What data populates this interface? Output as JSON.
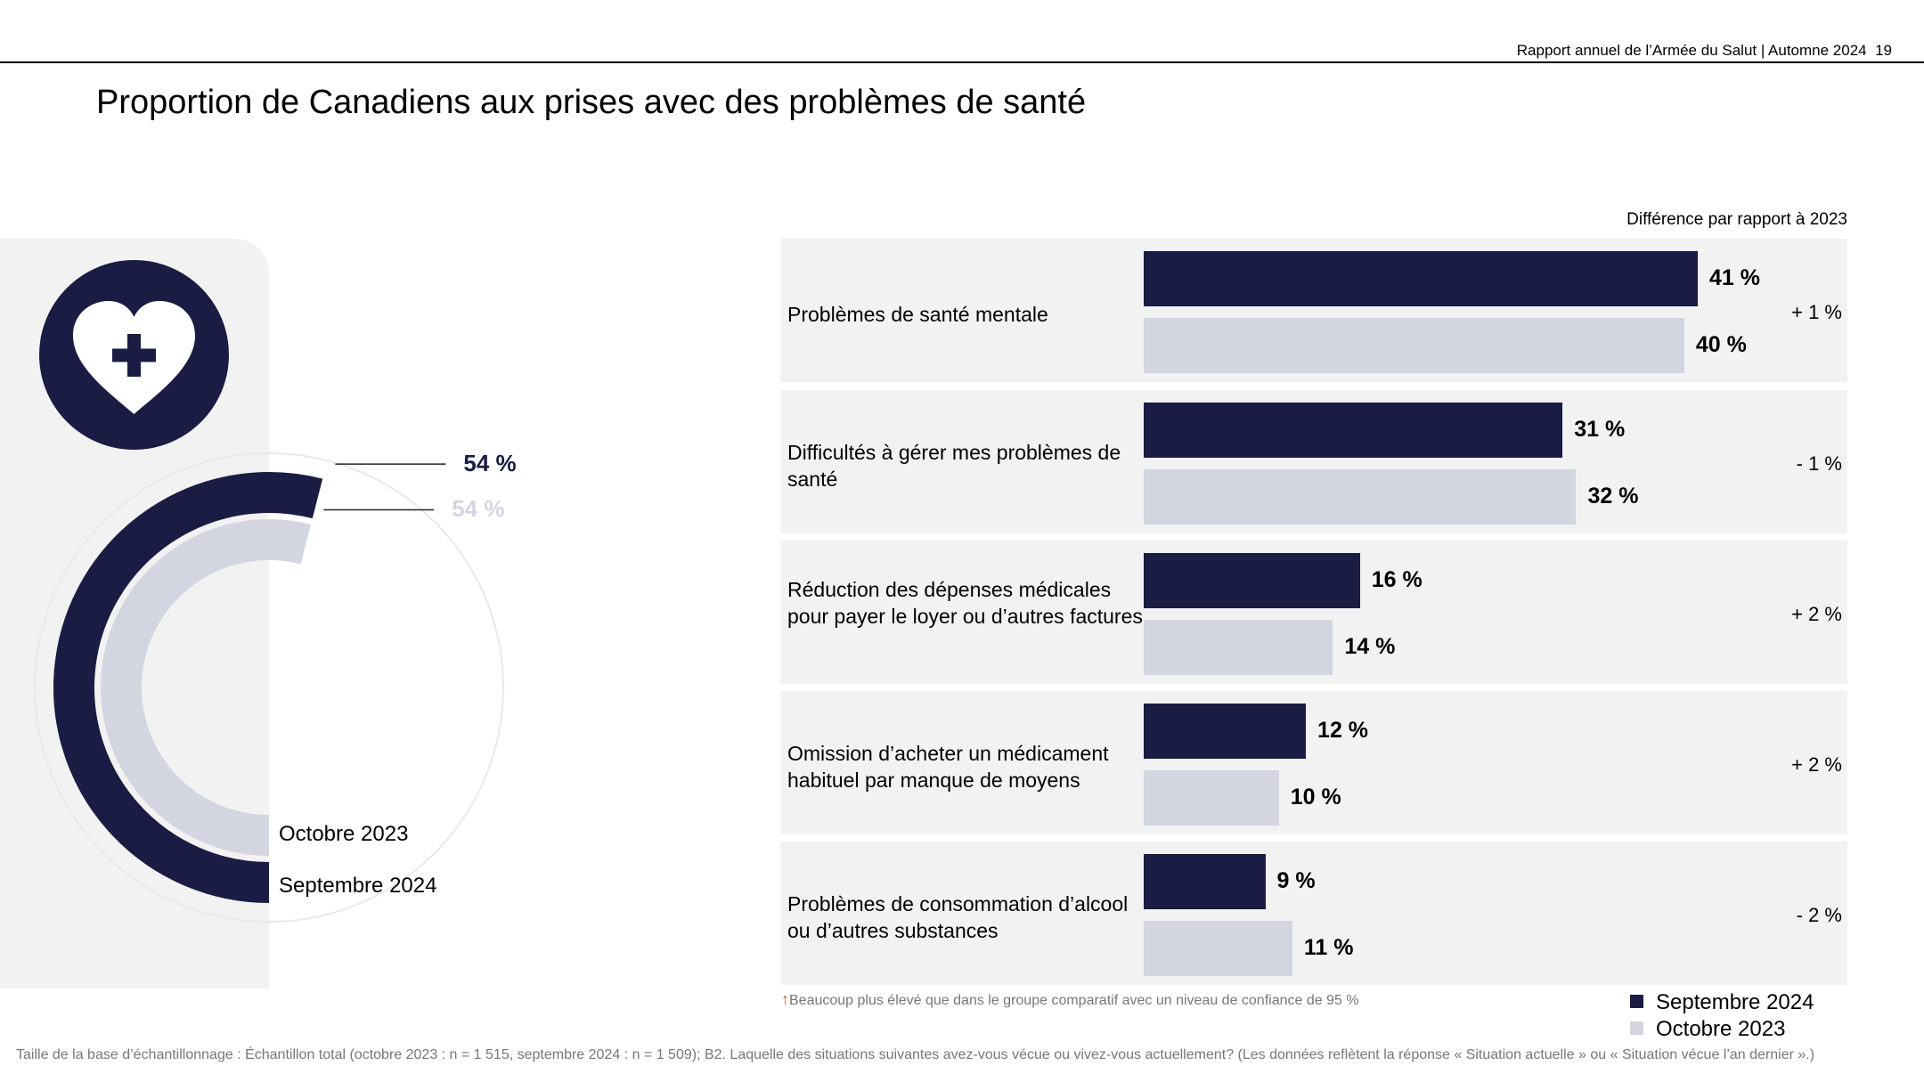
{
  "header": {
    "report": "Rapport annuel de l’Armée du Salut | Automne 2024",
    "page_number": "19"
  },
  "title": "Proportion de Canadiens aux prises avec des problèmes de santé",
  "colors": {
    "sep2024": "#1b1c43",
    "oct2023": "#d3d6e0",
    "panel": "#f2f2f2"
  },
  "icon": "heart-plus-icon",
  "chart_data": [
    {
      "type": "pie",
      "variant": "radial-arc",
      "series": [
        {
          "name": "Septembre 2024",
          "value": 54,
          "label": "54 %"
        },
        {
          "name": "Octobre 2023",
          "value": 54,
          "label": "54 %"
        }
      ]
    },
    {
      "type": "bar",
      "orientation": "horizontal",
      "diff_header": "Différence par rapport à 2023",
      "categories": [
        "Problèmes de santé mentale",
        "Difficultés à gérer mes problèmes de santé",
        "Réduction des dépenses médicales pour payer le loyer ou d’autres factures",
        "Omission d’acheter un médicament habituel par manque de moyens",
        "Problèmes de consommation d’alcool ou d’autres substances"
      ],
      "series": [
        {
          "name": "Septembre 2024",
          "values": [
            41,
            31,
            16,
            12,
            9
          ],
          "labels": [
            "41 %",
            "31 %",
            "16 %",
            "12 %",
            "9 %"
          ]
        },
        {
          "name": "Octobre 2023",
          "values": [
            40,
            32,
            14,
            10,
            11
          ],
          "labels": [
            "40 %",
            "32 %",
            "14 %",
            "10 %",
            "11 %"
          ]
        }
      ],
      "differences": [
        "+ 1 %",
        "- 1 %",
        "+ 2 %",
        "+ 2 %",
        "- 2 %"
      ],
      "xlim": [
        0,
        41
      ]
    }
  ],
  "legend": [
    {
      "label": "Septembre 2024"
    },
    {
      "label": "Octobre 2023"
    }
  ],
  "note": "Beaucoup plus élevé que dans le groupe comparatif avec un niveau de confiance de 95 %",
  "footnote": "Taille de la base d’échantillonnage : Échantillon total (octobre 2023 : n = 1 515, septembre 2024 : n = 1 509); B2. Laquelle des situations suivantes avez-vous vécue ou vivez-vous actuellement? (Les données reflètent la réponse « Situation actuelle » ou « Situation vécue l’an dernier ».)"
}
